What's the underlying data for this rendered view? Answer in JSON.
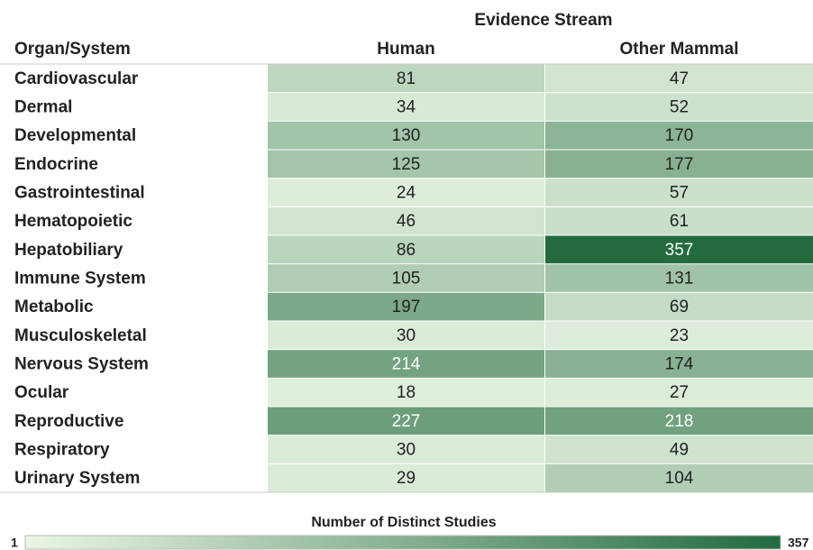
{
  "chart_data": {
    "type": "heatmap",
    "title": "Evidence Stream",
    "row_header": "Organ/System",
    "categories": [
      "Cardiovascular",
      "Dermal",
      "Developmental",
      "Endocrine",
      "Gastrointestinal",
      "Hematopoietic",
      "Hepatobiliary",
      "Immune System",
      "Metabolic",
      "Musculoskeletal",
      "Nervous System",
      "Ocular",
      "Reproductive",
      "Respiratory",
      "Urinary System"
    ],
    "series": [
      {
        "name": "Human",
        "values": [
          81,
          34,
          130,
          125,
          24,
          46,
          86,
          105,
          197,
          30,
          214,
          18,
          227,
          30,
          29
        ]
      },
      {
        "name": "Other Mammal",
        "values": [
          47,
          52,
          170,
          177,
          57,
          61,
          357,
          131,
          69,
          23,
          174,
          27,
          218,
          49,
          104
        ]
      }
    ],
    "colorbar_title": "Number of Distinct Studies",
    "zlim": [
      1,
      357
    ],
    "colors": [
      "#eaf6e5",
      "#236b3e"
    ]
  }
}
